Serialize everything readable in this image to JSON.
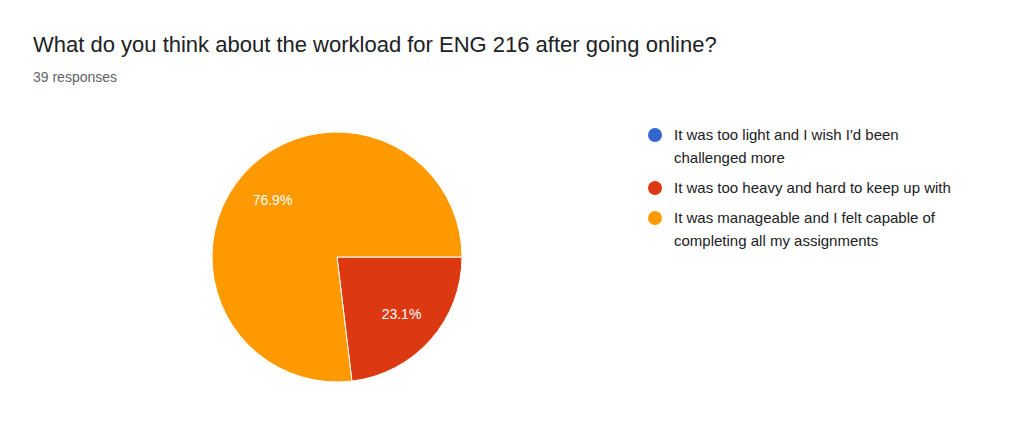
{
  "chart_data": {
    "type": "pie",
    "title": "What do you think about the workload for ENG 216 after going online?",
    "subtitle": "39 responses",
    "categories": [
      "It was too light and I wish I'd been challenged more",
      "It was too heavy and hard to keep up with",
      "It was manageable and I felt capable of completing all my assignments"
    ],
    "values": [
      0,
      23.1,
      76.9
    ],
    "value_labels": [
      null,
      "23.1%",
      "76.9%"
    ],
    "colors": [
      "#3366cc",
      "#dc3912",
      "#ff9900"
    ],
    "data_labels": true,
    "legend": "right"
  }
}
